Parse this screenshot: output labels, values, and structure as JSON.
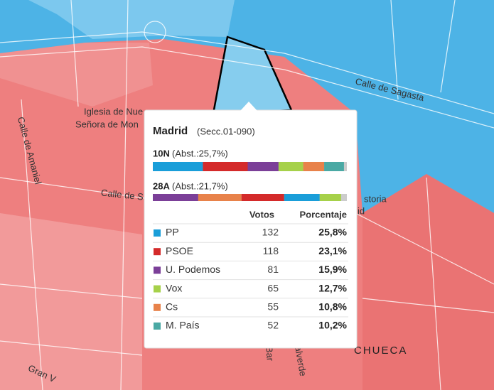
{
  "map_labels": [
    "Calle de Sagasta",
    "Iglesia de Nue",
    "Señora de Mon",
    "Calle de Amaniel",
    "Calle de S",
    "storia",
    "id",
    "CHUECA",
    "Gran V",
    "de Bar",
    "Valverde"
  ],
  "tooltip": {
    "title": "Madrid",
    "subtitle": "(Secc.01-090)",
    "elections": [
      {
        "label": "10N",
        "abstention": "(Abst.:25,7%)"
      },
      {
        "label": "28A",
        "abstention": "(Abst.:21,7%)",
        "segments": [
          {
            "color": "#7b3f98",
            "value": 23.4
          },
          {
            "color": "#e8824a",
            "value": 22.3
          },
          {
            "color": "#d42a2a",
            "value": 22
          },
          {
            "color": "#1a9ed9",
            "value": 18.3
          },
          {
            "color": "#a6d14a",
            "value": 11
          }
        ]
      }
    ],
    "headers": [
      "Votos",
      "Porcentaje"
    ],
    "rows": [
      {
        "party": "PP",
        "color": "#1a9ed9",
        "votes": 132,
        "percent": 25.8,
        "percent_label": "25,8%"
      },
      {
        "party": "PSOE",
        "color": "#d42a2a",
        "votes": 118,
        "percent": 23.1,
        "percent_label": "23,1%"
      },
      {
        "party": "U. Podemos",
        "color": "#7b3f98",
        "votes": 81,
        "percent": 15.9,
        "percent_label": "15,9%"
      },
      {
        "party": "Vox",
        "color": "#a6d14a",
        "votes": 65,
        "percent": 12.7,
        "percent_label": "12,7%"
      },
      {
        "party": "Cs",
        "color": "#e8824a",
        "votes": 55,
        "percent": 10.8,
        "percent_label": "10,8%"
      },
      {
        "party": "M. País",
        "color": "#4aa9a4",
        "votes": 52,
        "percent": 10.2,
        "percent_label": "10,2%"
      }
    ]
  }
}
